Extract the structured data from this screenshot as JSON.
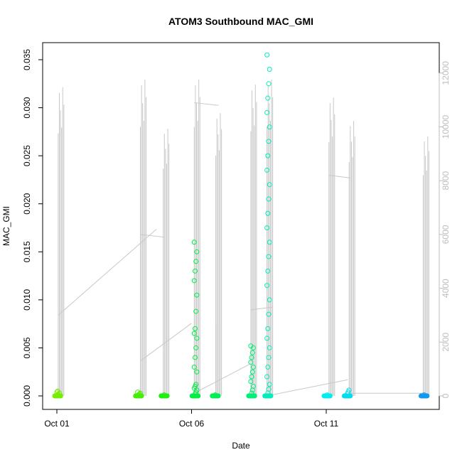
{
  "chart_data": {
    "type": "scatter",
    "title": "ATOM3 Southbound MAC_GMI",
    "xlabel": "Date",
    "ylabel": "MAC_GMI",
    "x_ticks": [
      "Oct 01",
      "Oct 06",
      "Oct 11"
    ],
    "x_range_days": [
      0,
      13.6
    ],
    "x_tick_days": [
      0,
      5,
      10
    ],
    "y_left": {
      "range": [
        0,
        0.0355
      ],
      "ticks": [
        "0.000",
        "0.005",
        "0.010",
        "0.015",
        "0.020",
        "0.025",
        "0.030",
        "0.035"
      ],
      "tick_values": [
        0,
        0.005,
        0.01,
        0.015,
        0.02,
        0.025,
        0.03,
        0.035
      ]
    },
    "y_right": {
      "range": [
        0,
        12200
      ],
      "ticks": [
        "0",
        "2000",
        "4000",
        "6000",
        "8000",
        "10000",
        "12000"
      ],
      "tick_values": [
        0,
        2000,
        4000,
        6000,
        8000,
        10000,
        12000
      ],
      "color": "#bdbdbd"
    },
    "line_color": "#c8c8c8",
    "series": [
      {
        "day": 0.0,
        "color": "#77ee00",
        "values": [
          0.0,
          0.0001,
          0.0002,
          0.0003,
          0.0004,
          0.0005
        ]
      },
      {
        "day": 3.0,
        "color": "#44ee00",
        "values": [
          0.0,
          0.0001,
          0.0002,
          0.0003,
          0.0004
        ]
      },
      {
        "day": 3.95,
        "color": "#22ee11",
        "values": [
          0.0,
          0.0001
        ]
      },
      {
        "day": 5.1,
        "color": "#00ee44",
        "values": [
          0.0,
          0.0002,
          0.0004,
          0.0006,
          0.0008,
          0.001,
          0.0012,
          0.0025,
          0.003,
          0.004,
          0.005,
          0.006,
          0.0065,
          0.007,
          0.0088,
          0.0105,
          0.012,
          0.013,
          0.014,
          0.015,
          0.016
        ]
      },
      {
        "day": 5.85,
        "color": "#00ee55",
        "values": [
          0.0,
          0.0001
        ]
      },
      {
        "day": 7.2,
        "color": "#00ee77",
        "values": [
          0.0,
          0.0003,
          0.0006,
          0.001,
          0.0015,
          0.002,
          0.0025,
          0.003,
          0.0035,
          0.004,
          0.0045,
          0.005,
          0.0052
        ]
      },
      {
        "day": 7.8,
        "color": "#00eebb",
        "values": [
          0.0,
          0.0003,
          0.0007,
          0.0012,
          0.002,
          0.003,
          0.004,
          0.005,
          0.006,
          0.007,
          0.0085,
          0.01,
          0.0115,
          0.013,
          0.0145,
          0.016,
          0.0175,
          0.019,
          0.0205,
          0.022,
          0.0235,
          0.025,
          0.0265,
          0.028,
          0.0295,
          0.031,
          0.0325,
          0.034,
          0.0355
        ]
      },
      {
        "day": 10.0,
        "color": "#00eeee",
        "values": [
          0.0,
          0.0001
        ]
      },
      {
        "day": 10.75,
        "color": "#00ddee",
        "values": [
          0.0,
          0.0002,
          0.0004,
          0.0006
        ]
      },
      {
        "day": 13.6,
        "color": "#1199ee",
        "values": [
          0.0,
          0.0001
        ]
      }
    ],
    "grid": false,
    "legend": "none"
  }
}
